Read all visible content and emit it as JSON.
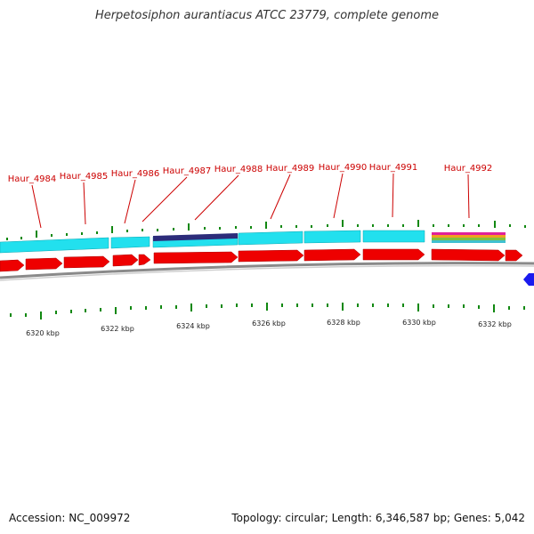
{
  "title": "Herpetosiphon aurantiacus ATCC 23779, complete genome",
  "footer": {
    "accession": "Accession: NC_009972",
    "summary": "Topology: circular; Length: 6,346,587 bp; Genes: 5,042"
  },
  "colors": {
    "cds_forward": "#ee0000",
    "feature_band": "#22e0ee",
    "highlight_band": "#2c2c7a",
    "backbone": "#9a9a9a",
    "tick": "#118811",
    "label": "#cc0000",
    "reverse_strand": "#1a1aee"
  },
  "gene_labels": [
    "Haur_4984",
    "Haur_4985",
    "Haur_4986",
    "Haur_4987",
    "Haur_4988",
    "Haur_4989",
    "Haur_4990",
    "Haur_4991",
    "Haur_4992"
  ],
  "scale_labels": [
    "6320 kbp",
    "6322 kbp",
    "6324 kbp",
    "6326 kbp",
    "6328 kbp",
    "6330 kbp",
    "6332 kbp"
  ]
}
